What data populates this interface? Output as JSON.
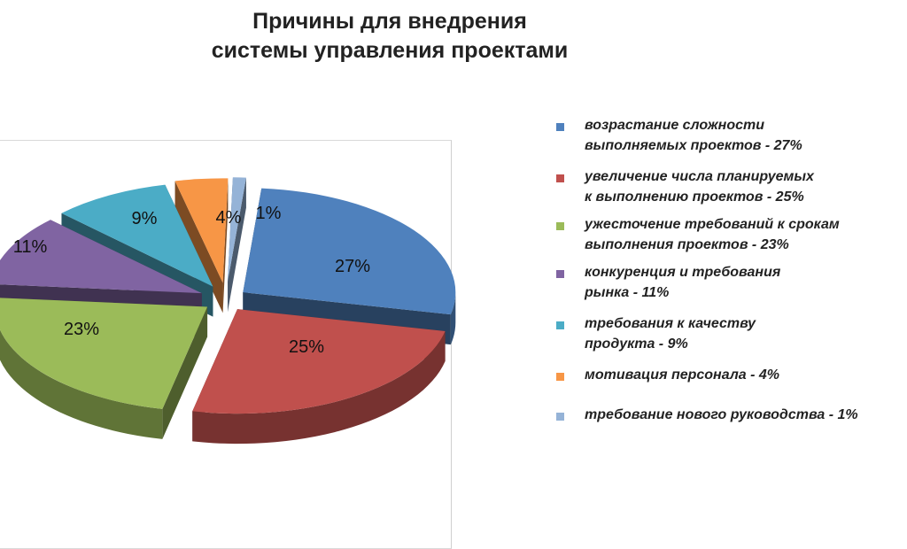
{
  "chart_data": {
    "type": "pie",
    "title_lines": [
      "Причины для внедрения",
      "системы управления проектами"
    ],
    "slices": [
      {
        "label": "27%",
        "value": 27,
        "color": "#4F81BD",
        "legend": "возрастание сложности\nвыполняемых проектов - 27%"
      },
      {
        "label": "25%",
        "value": 25,
        "color": "#C0504D",
        "legend": "увеличение числа планируемых\nк  выполнению проектов - 25%"
      },
      {
        "label": "23%",
        "value": 23,
        "color": "#9BBB59",
        "legend": "ужесточение требований к срокам\nвыполнения проектов - 23%"
      },
      {
        "label": "11%",
        "value": 11,
        "color": "#8064A2",
        "legend": "конкуренция и требования\nрынка - 11%"
      },
      {
        "label": "9%",
        "value": 9,
        "color": "#4BACC6",
        "legend": "требования к качеству\nпродукта - 9%"
      },
      {
        "label": "4%",
        "value": 4,
        "color": "#F79646",
        "legend": "мотивация персонала - 4%"
      },
      {
        "label": "1%",
        "value": 1,
        "color": "#95B3D7",
        "legend": "требование нового руководства - 1%"
      }
    ],
    "legend_position": "right",
    "exploded": true,
    "three_d": true
  }
}
